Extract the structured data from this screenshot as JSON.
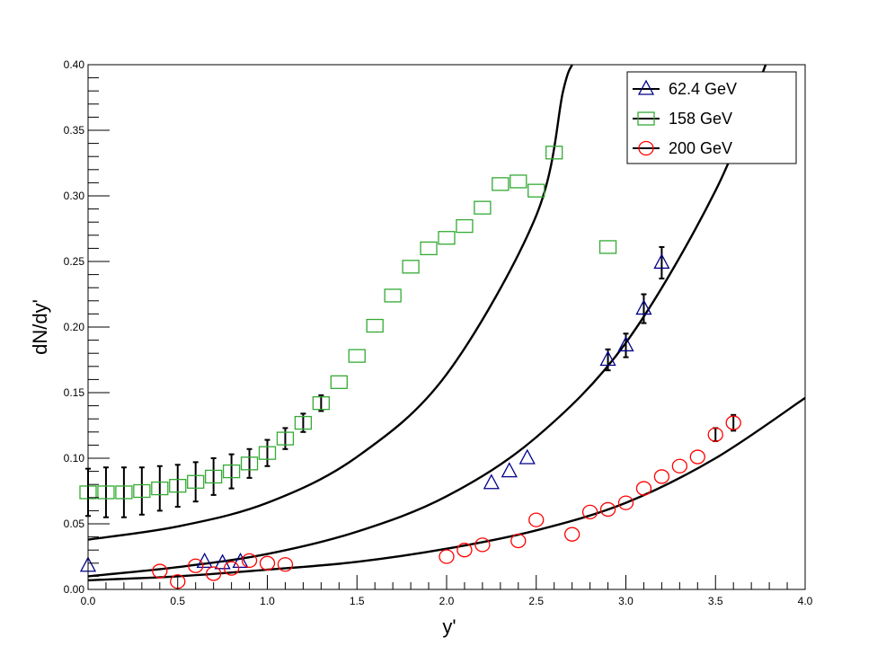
{
  "chart_data": {
    "type": "scatter",
    "title": "",
    "xlabel": "y'",
    "ylabel": "dN/dy'",
    "xlim": [
      0,
      4.0
    ],
    "ylim": [
      0,
      0.4
    ],
    "x_ticks": [
      "0.0",
      "0.5",
      "1.0",
      "1.5",
      "2.0",
      "2.5",
      "3.0",
      "3.5",
      "4.0"
    ],
    "y_ticks": [
      "0.00",
      "0.05",
      "0.10",
      "0.15",
      "0.20",
      "0.25",
      "0.30",
      "0.35",
      "0.40"
    ],
    "grid": false,
    "legend_placement": "top-right",
    "series": [
      {
        "name": "62.4 GeV",
        "marker": "triangle",
        "color": "#00008b",
        "points": [
          {
            "x": 0.0,
            "y": 0.018
          },
          {
            "x": 0.65,
            "y": 0.021
          },
          {
            "x": 0.75,
            "y": 0.02
          },
          {
            "x": 0.85,
            "y": 0.021
          },
          {
            "x": 2.25,
            "y": 0.081
          },
          {
            "x": 2.35,
            "y": 0.09
          },
          {
            "x": 2.45,
            "y": 0.1
          },
          {
            "x": 2.9,
            "y": 0.175,
            "err": 0.008
          },
          {
            "x": 3.0,
            "y": 0.186,
            "err": 0.009
          },
          {
            "x": 3.1,
            "y": 0.214,
            "err": 0.011
          },
          {
            "x": 3.2,
            "y": 0.249,
            "err": 0.012
          }
        ]
      },
      {
        "name": "158 GeV",
        "marker": "square",
        "color": "#33aa33",
        "points": [
          {
            "x": 0.0,
            "y": 0.074,
            "err": 0.018
          },
          {
            "x": 0.1,
            "y": 0.074,
            "err": 0.019
          },
          {
            "x": 0.2,
            "y": 0.074,
            "err": 0.019
          },
          {
            "x": 0.3,
            "y": 0.075,
            "err": 0.018
          },
          {
            "x": 0.4,
            "y": 0.077,
            "err": 0.017
          },
          {
            "x": 0.5,
            "y": 0.079,
            "err": 0.016
          },
          {
            "x": 0.6,
            "y": 0.082,
            "err": 0.015
          },
          {
            "x": 0.7,
            "y": 0.086,
            "err": 0.014
          },
          {
            "x": 0.8,
            "y": 0.09,
            "err": 0.013
          },
          {
            "x": 0.9,
            "y": 0.096,
            "err": 0.011
          },
          {
            "x": 1.0,
            "y": 0.104,
            "err": 0.01
          },
          {
            "x": 1.1,
            "y": 0.115,
            "err": 0.008
          },
          {
            "x": 1.2,
            "y": 0.127,
            "err": 0.007
          },
          {
            "x": 1.3,
            "y": 0.142,
            "err": 0.006
          },
          {
            "x": 1.4,
            "y": 0.158
          },
          {
            "x": 1.5,
            "y": 0.178
          },
          {
            "x": 1.6,
            "y": 0.201
          },
          {
            "x": 1.7,
            "y": 0.224
          },
          {
            "x": 1.8,
            "y": 0.246
          },
          {
            "x": 1.9,
            "y": 0.26
          },
          {
            "x": 2.0,
            "y": 0.268
          },
          {
            "x": 2.1,
            "y": 0.277
          },
          {
            "x": 2.2,
            "y": 0.291
          },
          {
            "x": 2.3,
            "y": 0.309
          },
          {
            "x": 2.4,
            "y": 0.311
          },
          {
            "x": 2.5,
            "y": 0.304
          },
          {
            "x": 2.6,
            "y": 0.333
          },
          {
            "x": 2.9,
            "y": 0.261
          }
        ]
      },
      {
        "name": "200 GeV",
        "marker": "circle",
        "color": "#ff0000",
        "points": [
          {
            "x": 0.4,
            "y": 0.014
          },
          {
            "x": 0.5,
            "y": 0.006
          },
          {
            "x": 0.6,
            "y": 0.018
          },
          {
            "x": 0.7,
            "y": 0.012
          },
          {
            "x": 0.8,
            "y": 0.016
          },
          {
            "x": 0.9,
            "y": 0.022
          },
          {
            "x": 1.0,
            "y": 0.02
          },
          {
            "x": 1.1,
            "y": 0.019
          },
          {
            "x": 2.0,
            "y": 0.025
          },
          {
            "x": 2.1,
            "y": 0.03
          },
          {
            "x": 2.2,
            "y": 0.034
          },
          {
            "x": 2.4,
            "y": 0.037
          },
          {
            "x": 2.5,
            "y": 0.053
          },
          {
            "x": 2.7,
            "y": 0.042
          },
          {
            "x": 2.8,
            "y": 0.059
          },
          {
            "x": 2.9,
            "y": 0.061
          },
          {
            "x": 3.0,
            "y": 0.066
          },
          {
            "x": 3.1,
            "y": 0.077
          },
          {
            "x": 3.2,
            "y": 0.086
          },
          {
            "x": 3.3,
            "y": 0.094
          },
          {
            "x": 3.4,
            "y": 0.101
          },
          {
            "x": 3.5,
            "y": 0.118,
            "err": 0.005
          },
          {
            "x": 3.6,
            "y": 0.127,
            "err": 0.006
          }
        ]
      }
    ],
    "curves": [
      {
        "color": "#000000",
        "points": [
          [
            0.0,
            0.038
          ],
          [
            0.5,
            0.048
          ],
          [
            1.0,
            0.066
          ],
          [
            1.5,
            0.101
          ],
          [
            2.0,
            0.164
          ],
          [
            2.5,
            0.285
          ],
          [
            2.65,
            0.38
          ],
          [
            2.7,
            0.4
          ]
        ]
      },
      {
        "color": "#000000",
        "points": [
          [
            0.0,
            0.01
          ],
          [
            0.5,
            0.017
          ],
          [
            1.0,
            0.027
          ],
          [
            1.5,
            0.044
          ],
          [
            2.0,
            0.071
          ],
          [
            2.5,
            0.116
          ],
          [
            3.0,
            0.188
          ],
          [
            3.5,
            0.304
          ],
          [
            3.78,
            0.4
          ]
        ]
      },
      {
        "color": "#000000",
        "points": [
          [
            0.0,
            0.007
          ],
          [
            0.5,
            0.01
          ],
          [
            1.0,
            0.015
          ],
          [
            1.5,
            0.021
          ],
          [
            2.0,
            0.031
          ],
          [
            2.5,
            0.045
          ],
          [
            3.0,
            0.066
          ],
          [
            3.5,
            0.1
          ],
          [
            4.0,
            0.146
          ]
        ]
      }
    ]
  }
}
